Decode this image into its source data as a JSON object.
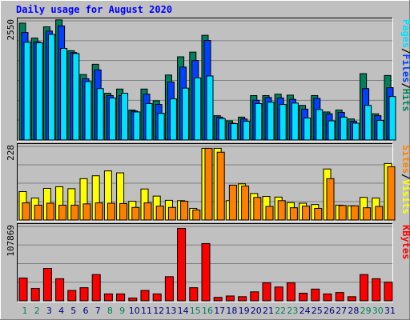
{
  "chart_data": {
    "type": "bar",
    "title": "Daily usage for August 2020",
    "colors": {
      "hits": "#00805c",
      "files": "#0040ff",
      "pages": "#00e0ff",
      "visits": "#ffff00",
      "sites": "#ff8000",
      "kbytes": "#ff0000",
      "weekend_day": "#00805c",
      "weekday_day": "#000080",
      "frame_bg": "#c0c0c0",
      "title": "#0000ff"
    },
    "categories": [
      "1",
      "2",
      "3",
      "4",
      "5",
      "6",
      "7",
      "8",
      "9",
      "10",
      "11",
      "12",
      "13",
      "14",
      "15",
      "16",
      "17",
      "18",
      "19",
      "20",
      "21",
      "22",
      "23",
      "24",
      "25",
      "26",
      "27",
      "28",
      "29",
      "30",
      "31"
    ],
    "weekend_days": [
      1,
      2,
      8,
      9,
      15,
      16,
      22,
      23,
      29,
      30
    ],
    "panels": [
      {
        "id": "usage",
        "ymax_label": "2550",
        "ymax": 2550,
        "legend": [
          {
            "text": "Pages",
            "color": "#00e0ff"
          },
          {
            "text": "/",
            "color": "#000000"
          },
          {
            "text": "Files",
            "color": "#0040ff"
          },
          {
            "text": "/",
            "color": "#000000"
          },
          {
            "text": "Hits",
            "color": "#00805c"
          }
        ],
        "series": [
          {
            "name": "Hits",
            "color": "#00805c",
            "values": [
              2500,
              2180,
              2420,
              2570,
              1910,
              1400,
              1620,
              1000,
              1090,
              640,
              1090,
              840,
              1390,
              1780,
              1880,
              2240,
              520,
              410,
              490,
              950,
              950,
              980,
              960,
              740,
              950,
              600,
              640,
              450,
              1420,
              560,
              1380
            ]
          },
          {
            "name": "Files",
            "color": "#0040ff",
            "values": [
              2300,
              2100,
              2330,
              2440,
              1870,
              1310,
              1500,
              950,
              950,
              620,
              980,
              760,
              1240,
              1560,
              1700,
              2130,
              490,
              360,
              450,
              850,
              910,
              900,
              870,
              660,
              890,
              560,
              590,
              400,
              1100,
              520,
              1120
            ]
          },
          {
            "name": "Pages",
            "color": "#00e0ff",
            "values": [
              2090,
              2080,
              2260,
              1960,
              1850,
              1250,
              1100,
              900,
              1000,
              600,
              780,
              570,
              880,
              1110,
              1330,
              1370,
              460,
              350,
              400,
              780,
              810,
              760,
              790,
              470,
              650,
              410,
              490,
              360,
              740,
              420,
              930
            ]
          }
        ]
      },
      {
        "id": "visits",
        "ymax_label": "228",
        "ymax": 228,
        "legend": [
          {
            "text": "Sites",
            "color": "#ff8000"
          },
          {
            "text": "/",
            "color": "#000000"
          },
          {
            "text": "Visits",
            "color": "#ffff00"
          }
        ],
        "series": [
          {
            "name": "Visits",
            "color": "#ffff00",
            "values": [
              88,
              68,
              98,
              103,
              97,
              128,
              137,
              152,
              146,
              58,
              96,
              74,
              61,
              60,
              36,
              222,
              222,
              60,
              112,
              82,
              73,
              71,
              54,
              52,
              48,
              158,
              46,
              44,
              70,
              68,
              175
            ]
          },
          {
            "name": "Sites",
            "color": "#ff8000",
            "values": [
              53,
              46,
              52,
              46,
              46,
              50,
              53,
              52,
              51,
              39,
              53,
              43,
              39,
              58,
              31,
              222,
              210,
              108,
              105,
              70,
              42,
              60,
              38,
              43,
              36,
              128,
              45,
              44,
              38,
              42,
              165
            ]
          }
        ]
      },
      {
        "id": "kbytes",
        "ymax_label": "107869",
        "ymax": 107869,
        "legend": [
          {
            "text": "KBytes",
            "color": "#ff0000"
          }
        ],
        "series": [
          {
            "name": "KBytes",
            "color": "#ff0000",
            "values": [
              33000,
              18000,
              47000,
              32000,
              15000,
              19000,
              38000,
              10000,
              10000,
              4000,
              15000,
              10000,
              35000,
              105000,
              19000,
              83000,
              5000,
              7000,
              6000,
              13000,
              26000,
              20000,
              26000,
              11000,
              17000,
              10000,
              12000,
              6000,
              38000,
              32000,
              27000
            ]
          }
        ]
      }
    ]
  }
}
